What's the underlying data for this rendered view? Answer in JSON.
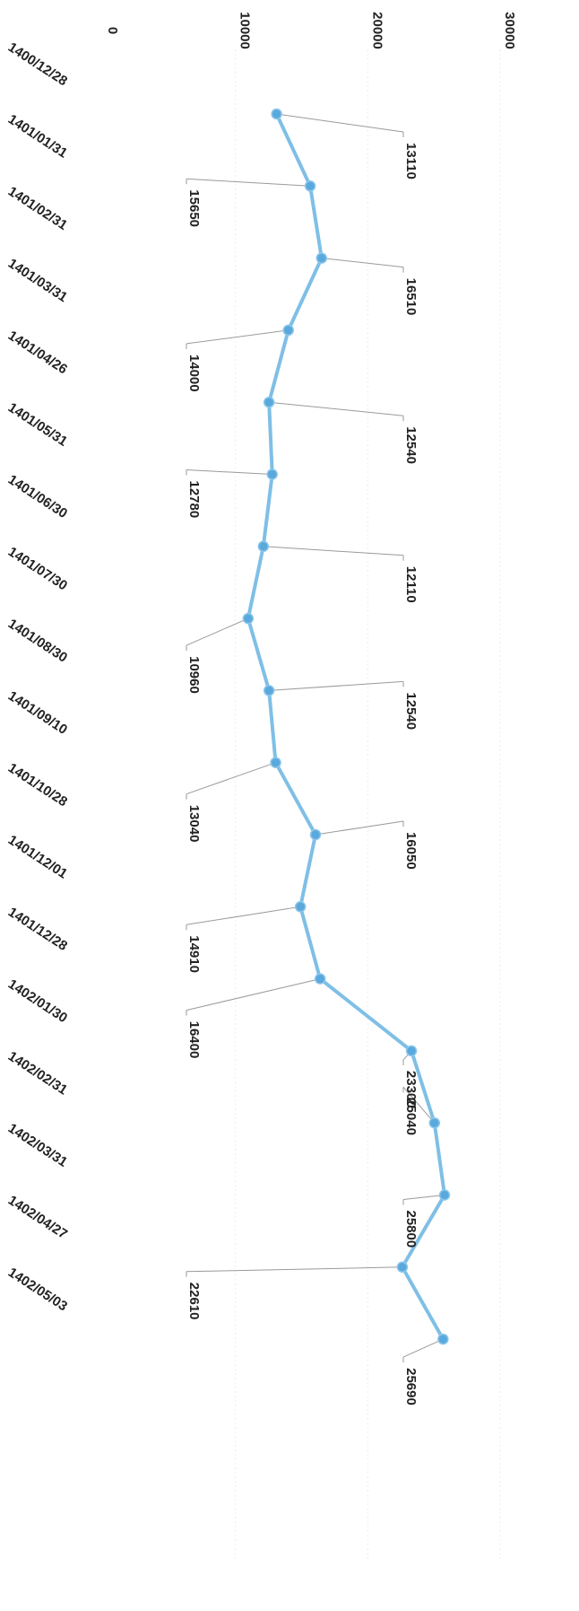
{
  "chart_data": {
    "type": "line",
    "orientation": "rotated-90-clockwise",
    "categories": [
      "1400/12/28",
      "1401/01/31",
      "1401/02/31",
      "1401/03/31",
      "1401/04/26",
      "1401/05/31",
      "1401/06/30",
      "1401/07/30",
      "1401/08/30",
      "1401/09/10",
      "1401/10/28",
      "1401/12/01",
      "1401/12/28",
      "1402/01/30",
      "1402/02/31",
      "1402/03/31",
      "1402/04/27",
      "1402/05/03"
    ],
    "series": [
      {
        "values": [
          13110,
          15650,
          16510,
          14000,
          12540,
          12780,
          12110,
          10960,
          12540,
          13040,
          16050,
          14910,
          16400,
          23300,
          25040,
          25800,
          22610,
          25690
        ]
      }
    ],
    "y_ticks": [
      "0",
      "10000",
      "20000",
      "30000"
    ],
    "ylim": [
      0,
      30000
    ],
    "title": "",
    "xlabel": "",
    "ylabel": "",
    "grid": true,
    "line_color": "#7fbfe6",
    "marker_color": "#5aa9dc",
    "leader_color": "#9a9a9a"
  }
}
